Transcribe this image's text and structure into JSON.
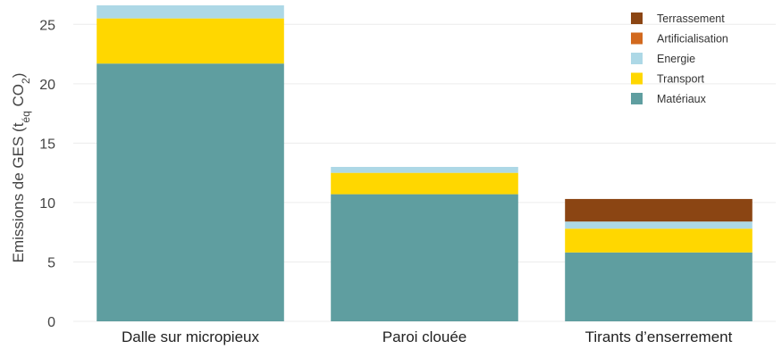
{
  "chart_data": {
    "type": "bar",
    "stacked": true,
    "categories": [
      "Dalle sur micropieux",
      "Paroi clouée",
      "Tirants d’enserrement"
    ],
    "series": [
      {
        "name": "Matériaux",
        "color": "#5f9ea0",
        "values": [
          21.7,
          10.7,
          5.8
        ]
      },
      {
        "name": "Transport",
        "color": "#ffd700",
        "values": [
          3.8,
          1.8,
          2.0
        ]
      },
      {
        "name": "Energie",
        "color": "#add8e6",
        "values": [
          1.1,
          0.5,
          0.6
        ]
      },
      {
        "name": "Artificialisation",
        "color": "#d2691e",
        "values": [
          0,
          0,
          0
        ]
      },
      {
        "name": "Terrassement",
        "color": "#8b4513",
        "values": [
          0,
          0,
          1.9
        ]
      }
    ],
    "legend_order": [
      "Terrassement",
      "Artificialisation",
      "Energie",
      "Transport",
      "Matériaux"
    ],
    "legend_position": "top-right",
    "ylim": [
      0,
      26.6
    ],
    "yticks": [
      0,
      5,
      10,
      15,
      20,
      25
    ],
    "grid": true,
    "ylabel": {
      "main": "Emissions de GES (t",
      "sub": "éq",
      "mid": " CO",
      "sub2": "2",
      "end": ")"
    }
  }
}
